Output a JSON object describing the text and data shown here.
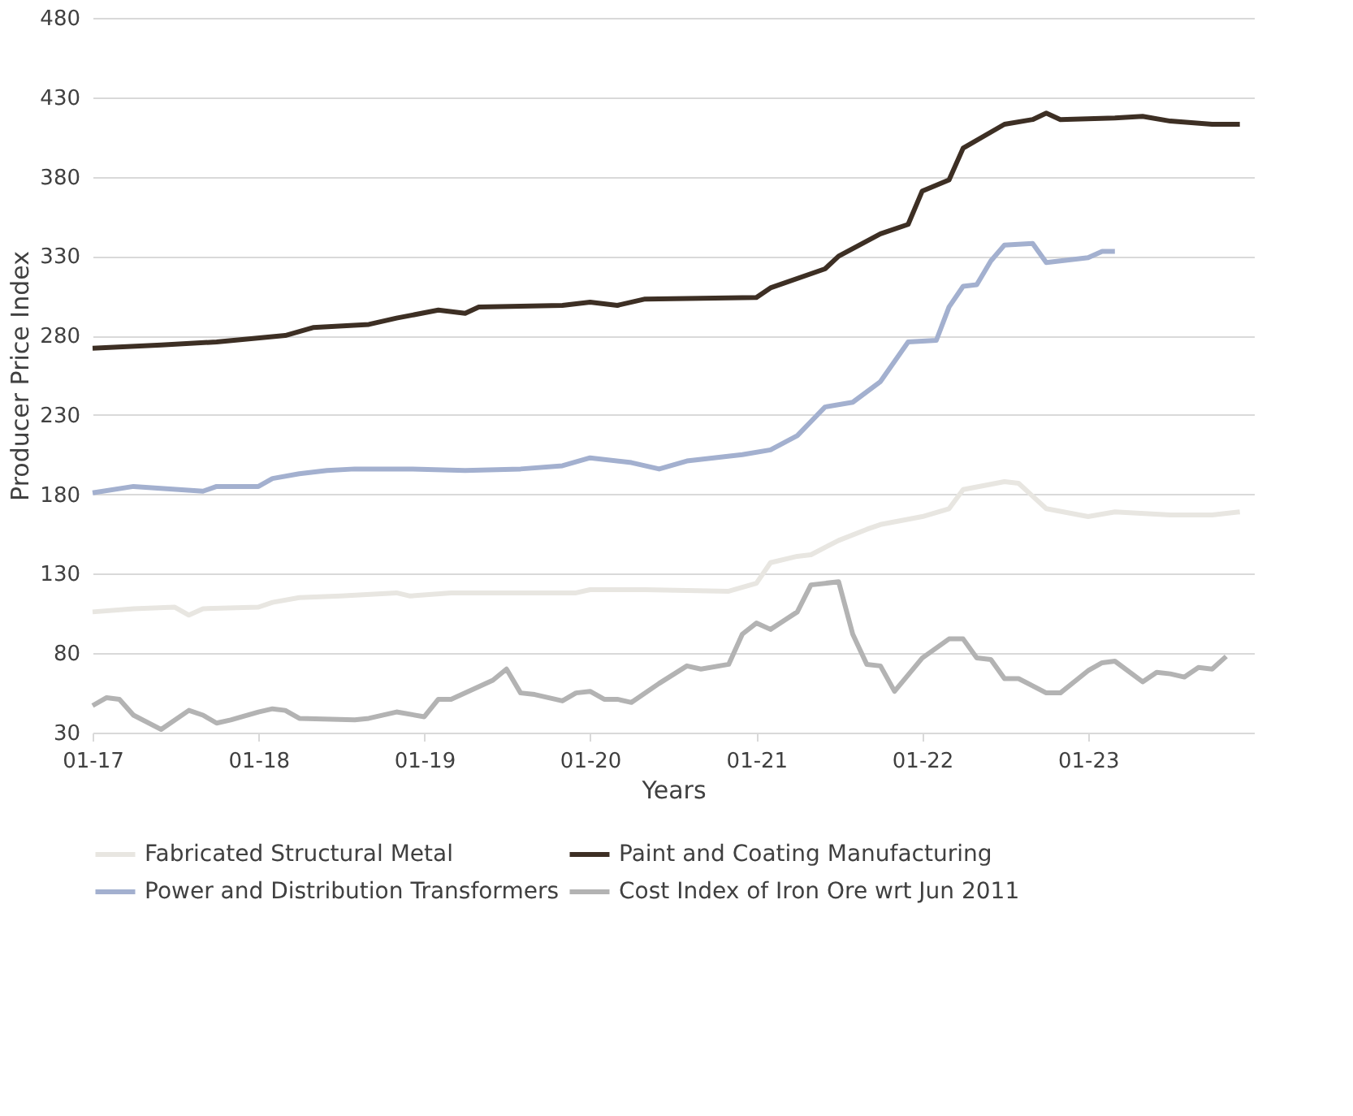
{
  "chart_data": {
    "type": "line",
    "xlabel": "Years",
    "ylabel": "Producer Price Index",
    "xlim": [
      "2017-01",
      "2024-01"
    ],
    "xticks": [
      {
        "value": "2017-01",
        "label": "01-17"
      },
      {
        "value": "2018-01",
        "label": "01-18"
      },
      {
        "value": "2019-01",
        "label": "01-19"
      },
      {
        "value": "2020-01",
        "label": "01-20"
      },
      {
        "value": "2021-01",
        "label": "01-21"
      },
      {
        "value": "2022-01",
        "label": "01-22"
      },
      {
        "value": "2023-01",
        "label": "01-23"
      }
    ],
    "ylim": [
      30,
      480
    ],
    "yticks": [
      30,
      80,
      130,
      180,
      230,
      280,
      330,
      380,
      430,
      480
    ],
    "grid": "y",
    "legend": "bottom",
    "line_style": "solid",
    "marker": "none",
    "series": [
      {
        "name": "Fabricated Structural Metal",
        "color": "#e8e6e1",
        "x": [
          "2017-01",
          "2017-04",
          "2017-07",
          "2017-08",
          "2017-09",
          "2018-01",
          "2018-02",
          "2018-04",
          "2018-07",
          "2018-11",
          "2018-12",
          "2019-03",
          "2019-12",
          "2020-01",
          "2020-05",
          "2020-11",
          "2021-01",
          "2021-02",
          "2021-04",
          "2021-05",
          "2021-07",
          "2021-09",
          "2021-10",
          "2022-01",
          "2022-03",
          "2022-04",
          "2022-07",
          "2022-08",
          "2022-10",
          "2023-01",
          "2023-03",
          "2023-07",
          "2023-10",
          "2023-12"
        ],
        "values": [
          106,
          108,
          109,
          104,
          108,
          109,
          112,
          115,
          116,
          118,
          116,
          118,
          118,
          120,
          120,
          119,
          124,
          137,
          141,
          142,
          151,
          158,
          161,
          166,
          171,
          183,
          188,
          187,
          171,
          166,
          169,
          167,
          167,
          169
        ]
      },
      {
        "name": "Paint and Coating Manufacturing",
        "color": "#3d2f24",
        "x": [
          "2017-01",
          "2017-06",
          "2017-10",
          "2018-03",
          "2018-05",
          "2018-09",
          "2018-11",
          "2019-02",
          "2019-04",
          "2019-05",
          "2019-11",
          "2020-01",
          "2020-03",
          "2020-05",
          "2021-01",
          "2021-02",
          "2021-06",
          "2021-07",
          "2021-10",
          "2021-12",
          "2022-01",
          "2022-03",
          "2022-04",
          "2022-07",
          "2022-09",
          "2022-10",
          "2022-11",
          "2023-03",
          "2023-05",
          "2023-07",
          "2023-10",
          "2023-12"
        ],
        "values": [
          272,
          274,
          276,
          280,
          285,
          287,
          291,
          296,
          294,
          298,
          299,
          301,
          299,
          303,
          304,
          310,
          322,
          330,
          344,
          350,
          371,
          378,
          398,
          413,
          416,
          420,
          416,
          417,
          418,
          415,
          413,
          413
        ]
      },
      {
        "name": "Power and Distribution Transformers",
        "color": "#a3b0cf",
        "x": [
          "2017-01",
          "2017-04",
          "2017-09",
          "2017-10",
          "2018-01",
          "2018-02",
          "2018-04",
          "2018-06",
          "2018-08",
          "2018-12",
          "2019-04",
          "2019-08",
          "2019-11",
          "2020-01",
          "2020-04",
          "2020-06",
          "2020-08",
          "2020-12",
          "2021-02",
          "2021-04",
          "2021-06",
          "2021-08",
          "2021-10",
          "2021-12",
          "2022-02",
          "2022-03",
          "2022-04",
          "2022-05",
          "2022-06",
          "2022-07",
          "2022-09",
          "2022-10",
          "2023-01",
          "2023-02",
          "2023-03"
        ],
        "values": [
          181,
          185,
          182,
          185,
          185,
          190,
          193,
          195,
          196,
          196,
          195,
          196,
          198,
          203,
          200,
          196,
          201,
          205,
          208,
          217,
          235,
          238,
          251,
          276,
          277,
          298,
          311,
          312,
          327,
          337,
          338,
          326,
          329,
          333,
          333
        ]
      },
      {
        "name": "Cost Index of Iron Ore wrt Jun 2011",
        "color": "#b3b3b3",
        "x": [
          "2017-01",
          "2017-02",
          "2017-03",
          "2017-04",
          "2017-06",
          "2017-08",
          "2017-09",
          "2017-10",
          "2017-11",
          "2018-01",
          "2018-02",
          "2018-03",
          "2018-04",
          "2018-08",
          "2018-09",
          "2018-11",
          "2019-01",
          "2019-02",
          "2019-03",
          "2019-06",
          "2019-07",
          "2019-08",
          "2019-09",
          "2019-11",
          "2019-12",
          "2020-01",
          "2020-02",
          "2020-03",
          "2020-04",
          "2020-06",
          "2020-08",
          "2020-09",
          "2020-11",
          "2020-12",
          "2021-01",
          "2021-02",
          "2021-04",
          "2021-05",
          "2021-07",
          "2021-08",
          "2021-09",
          "2021-10",
          "2021-11",
          "2022-01",
          "2022-03",
          "2022-04",
          "2022-05",
          "2022-06",
          "2022-07",
          "2022-08",
          "2022-10",
          "2022-11",
          "2023-01",
          "2023-02",
          "2023-03",
          "2023-05",
          "2023-06",
          "2023-07",
          "2023-08",
          "2023-09",
          "2023-10",
          "2023-11"
        ],
        "values": [
          47,
          52,
          51,
          41,
          32,
          44,
          41,
          36,
          38,
          43,
          45,
          44,
          39,
          38,
          39,
          43,
          40,
          51,
          51,
          63,
          70,
          55,
          54,
          50,
          55,
          56,
          51,
          51,
          49,
          61,
          72,
          70,
          73,
          92,
          99,
          95,
          106,
          123,
          125,
          92,
          73,
          72,
          56,
          77,
          89,
          89,
          77,
          76,
          64,
          64,
          55,
          55,
          69,
          74,
          75,
          62,
          68,
          67,
          65,
          71,
          70,
          78
        ]
      }
    ]
  }
}
